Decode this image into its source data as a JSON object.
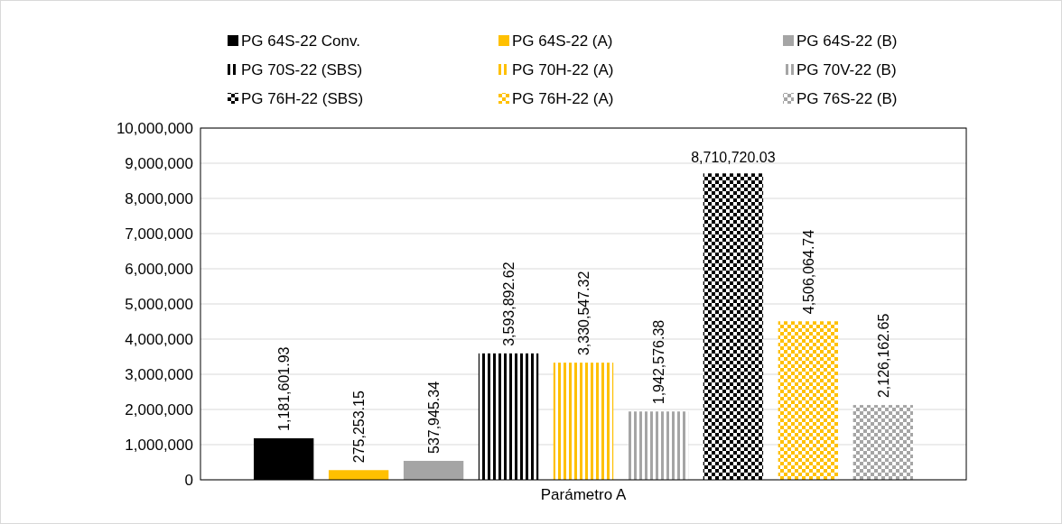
{
  "chart_data": {
    "type": "bar",
    "categories": [
      "Parámetro A"
    ],
    "series": [
      {
        "name": "PG 64S-22 Conv.",
        "color": "#000000",
        "values": [
          1181601.93
        ],
        "value_labels": [
          "1,181,601.93"
        ]
      },
      {
        "name": "PG 64S-22 (A)",
        "color": "#ffc000",
        "values": [
          275253.15
        ],
        "value_labels": [
          "275,253.15"
        ]
      },
      {
        "name": "PG 64S-22 (B)",
        "color": "#a5a5a5",
        "values": [
          537945.34
        ],
        "value_labels": [
          "537,945.34"
        ]
      },
      {
        "name": "PG 70S-22 (SBS)",
        "color": "#000000",
        "values": [
          3593892.62
        ],
        "value_labels": [
          "3,593,892.62"
        ]
      },
      {
        "name": "PG 70H-22 (A)",
        "color": "#ffc000",
        "values": [
          3330547.32
        ],
        "value_labels": [
          "3,330,547.32"
        ]
      },
      {
        "name": "PG 70V-22 (B)",
        "color": "#a5a5a5",
        "values": [
          1942576.38
        ],
        "value_labels": [
          "1,942,576.38"
        ]
      },
      {
        "name": "PG 76H-22 (SBS)",
        "color": "#000000",
        "values": [
          8710720.03
        ],
        "value_labels": [
          "8,710,720.03"
        ]
      },
      {
        "name": "PG 76H-22 (A)",
        "color": "#ffc000",
        "values": [
          4506064.74
        ],
        "value_labels": [
          "4,506,064.74"
        ]
      },
      {
        "name": "PG 76S-22 (B)",
        "color": "#a5a5a5",
        "values": [
          2126162.65
        ],
        "value_labels": [
          "2,126,162.65"
        ]
      }
    ],
    "ylim": [
      0,
      10000000
    ],
    "yticks": [
      {
        "value": 0,
        "label": "0"
      },
      {
        "value": 1000000,
        "label": "1,000,000"
      },
      {
        "value": 2000000,
        "label": "2,000,000"
      },
      {
        "value": 3000000,
        "label": "3,000,000"
      },
      {
        "value": 4000000,
        "label": "4,000,000"
      },
      {
        "value": 5000000,
        "label": "5,000,000"
      },
      {
        "value": 6000000,
        "label": "6,000,000"
      },
      {
        "value": 7000000,
        "label": "7,000,000"
      },
      {
        "value": 8000000,
        "label": "8,000,000"
      },
      {
        "value": 9000000,
        "label": "9,000,000"
      },
      {
        "value": 10000000,
        "label": "10,000,000"
      }
    ],
    "grid": "y",
    "legend": "top"
  }
}
